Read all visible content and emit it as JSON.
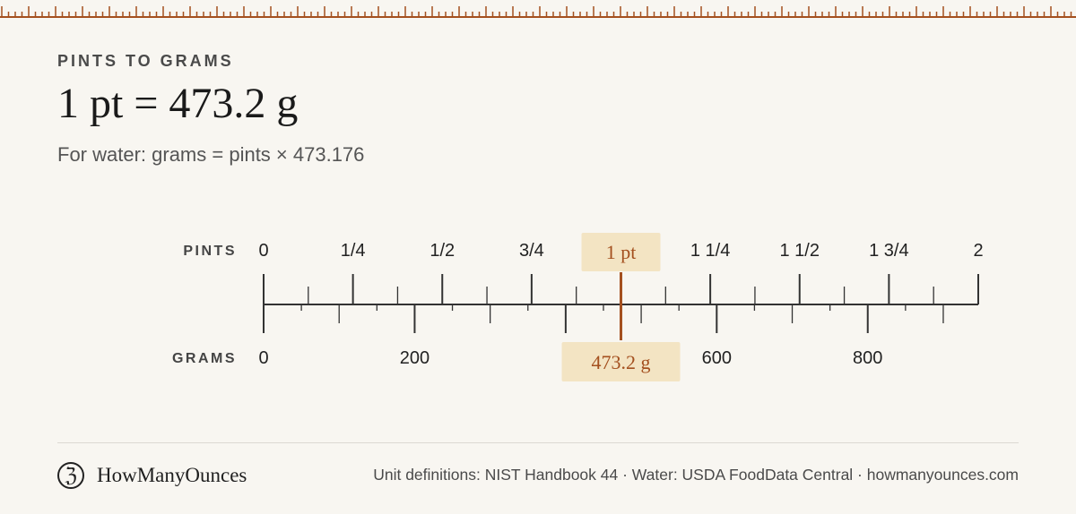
{
  "header": {
    "eyebrow": "PINTS TO GRAMS",
    "headline": "1 pt = 473.2 g",
    "formula": "For water: grams = pints × 473.176"
  },
  "scale": {
    "top_row_label": "PINTS",
    "bottom_row_label": "GRAMS",
    "pint_ticks": [
      {
        "value": 0,
        "label": "0"
      },
      {
        "value": 0.25,
        "label": "1/4"
      },
      {
        "value": 0.5,
        "label": "1/2"
      },
      {
        "value": 0.75,
        "label": "3/4"
      },
      {
        "value": 1.0,
        "label": ""
      },
      {
        "value": 1.25,
        "label": "1 1/4"
      },
      {
        "value": 1.5,
        "label": "1 1/2"
      },
      {
        "value": 1.75,
        "label": "1 3/4"
      },
      {
        "value": 2.0,
        "label": "2"
      }
    ],
    "gram_ticks": [
      {
        "value": 0,
        "label": "0"
      },
      {
        "value": 200,
        "label": "200"
      },
      {
        "value": 400,
        "label": ""
      },
      {
        "value": 600,
        "label": "600"
      },
      {
        "value": 800,
        "label": "800"
      }
    ],
    "pint_max": 2,
    "grams_per_pint": 473.176,
    "marker": {
      "pints": 1,
      "grams": 473.2,
      "top_label": "1 pt",
      "bottom_label": "473.2 g"
    }
  },
  "footer": {
    "brand_logo_glyph": "ℨ",
    "brand_name": "HowManyOunces",
    "sources": "Unit definitions: NIST Handbook 44 · Water: USDA FoodData Central · howmanyounces.com"
  },
  "colors": {
    "background": "#f8f6f1",
    "accent": "#a4501f",
    "label_fill": "#f3e4c3",
    "ink": "#333333"
  }
}
